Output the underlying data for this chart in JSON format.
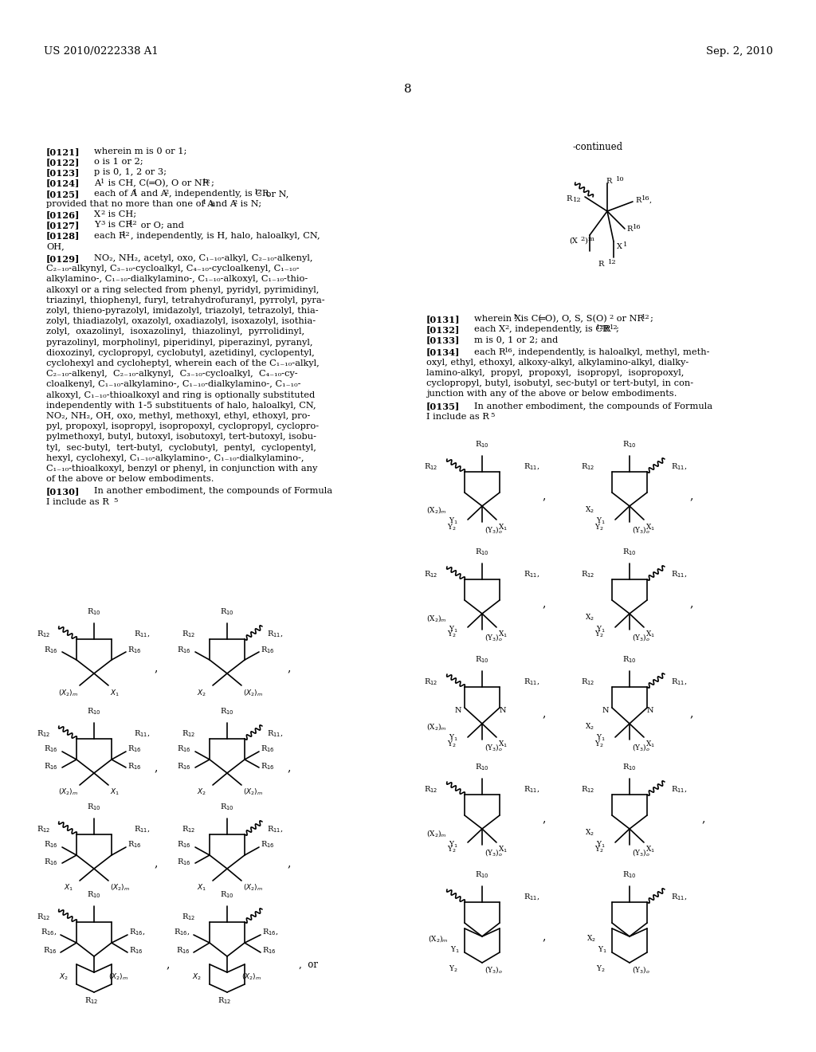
{
  "header_left": "US 2010/0222338 A1",
  "header_right": "Sep. 2, 2010",
  "page_number": "8",
  "bg_color": "#ffffff",
  "text_color": "#000000"
}
